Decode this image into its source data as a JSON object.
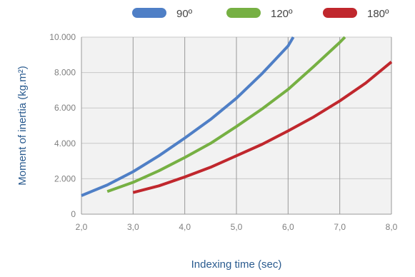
{
  "chart_data": {
    "type": "line",
    "xlabel": "Indexing time (sec)",
    "ylabel": "Moment of inertia (kg.m²)",
    "xlim": [
      2.0,
      8.0
    ],
    "ylim": [
      0,
      10000
    ],
    "x_ticks": [
      "2,0",
      "3,0",
      "4,0",
      "5,0",
      "6,0",
      "7,0",
      "8,0"
    ],
    "y_ticks": [
      "0",
      "2.000",
      "4.000",
      "6.000",
      "8.000",
      "10.000"
    ],
    "grid": true,
    "legend": "top",
    "series": [
      {
        "name": "90º",
        "color": "#4f7fc6",
        "x": [
          2.0,
          2.5,
          3.0,
          3.5,
          4.0,
          4.5,
          5.0,
          5.5,
          6.0,
          6.1
        ],
        "y": [
          1050,
          1650,
          2400,
          3300,
          4300,
          5350,
          6550,
          7950,
          9500,
          10000
        ]
      },
      {
        "name": "120º",
        "color": "#76b043",
        "x": [
          2.5,
          3.0,
          3.5,
          4.0,
          4.5,
          5.0,
          5.5,
          6.0,
          6.5,
          7.0,
          7.1
        ],
        "y": [
          1280,
          1800,
          2450,
          3200,
          4000,
          4950,
          5950,
          7050,
          8350,
          9700,
          10000
        ]
      },
      {
        "name": "180º",
        "color": "#c0272d",
        "x": [
          3.0,
          3.5,
          4.0,
          4.5,
          5.0,
          5.5,
          6.0,
          6.5,
          7.0,
          7.5,
          8.0
        ],
        "y": [
          1220,
          1600,
          2100,
          2650,
          3300,
          3950,
          4700,
          5500,
          6400,
          7400,
          8600
        ]
      }
    ]
  }
}
